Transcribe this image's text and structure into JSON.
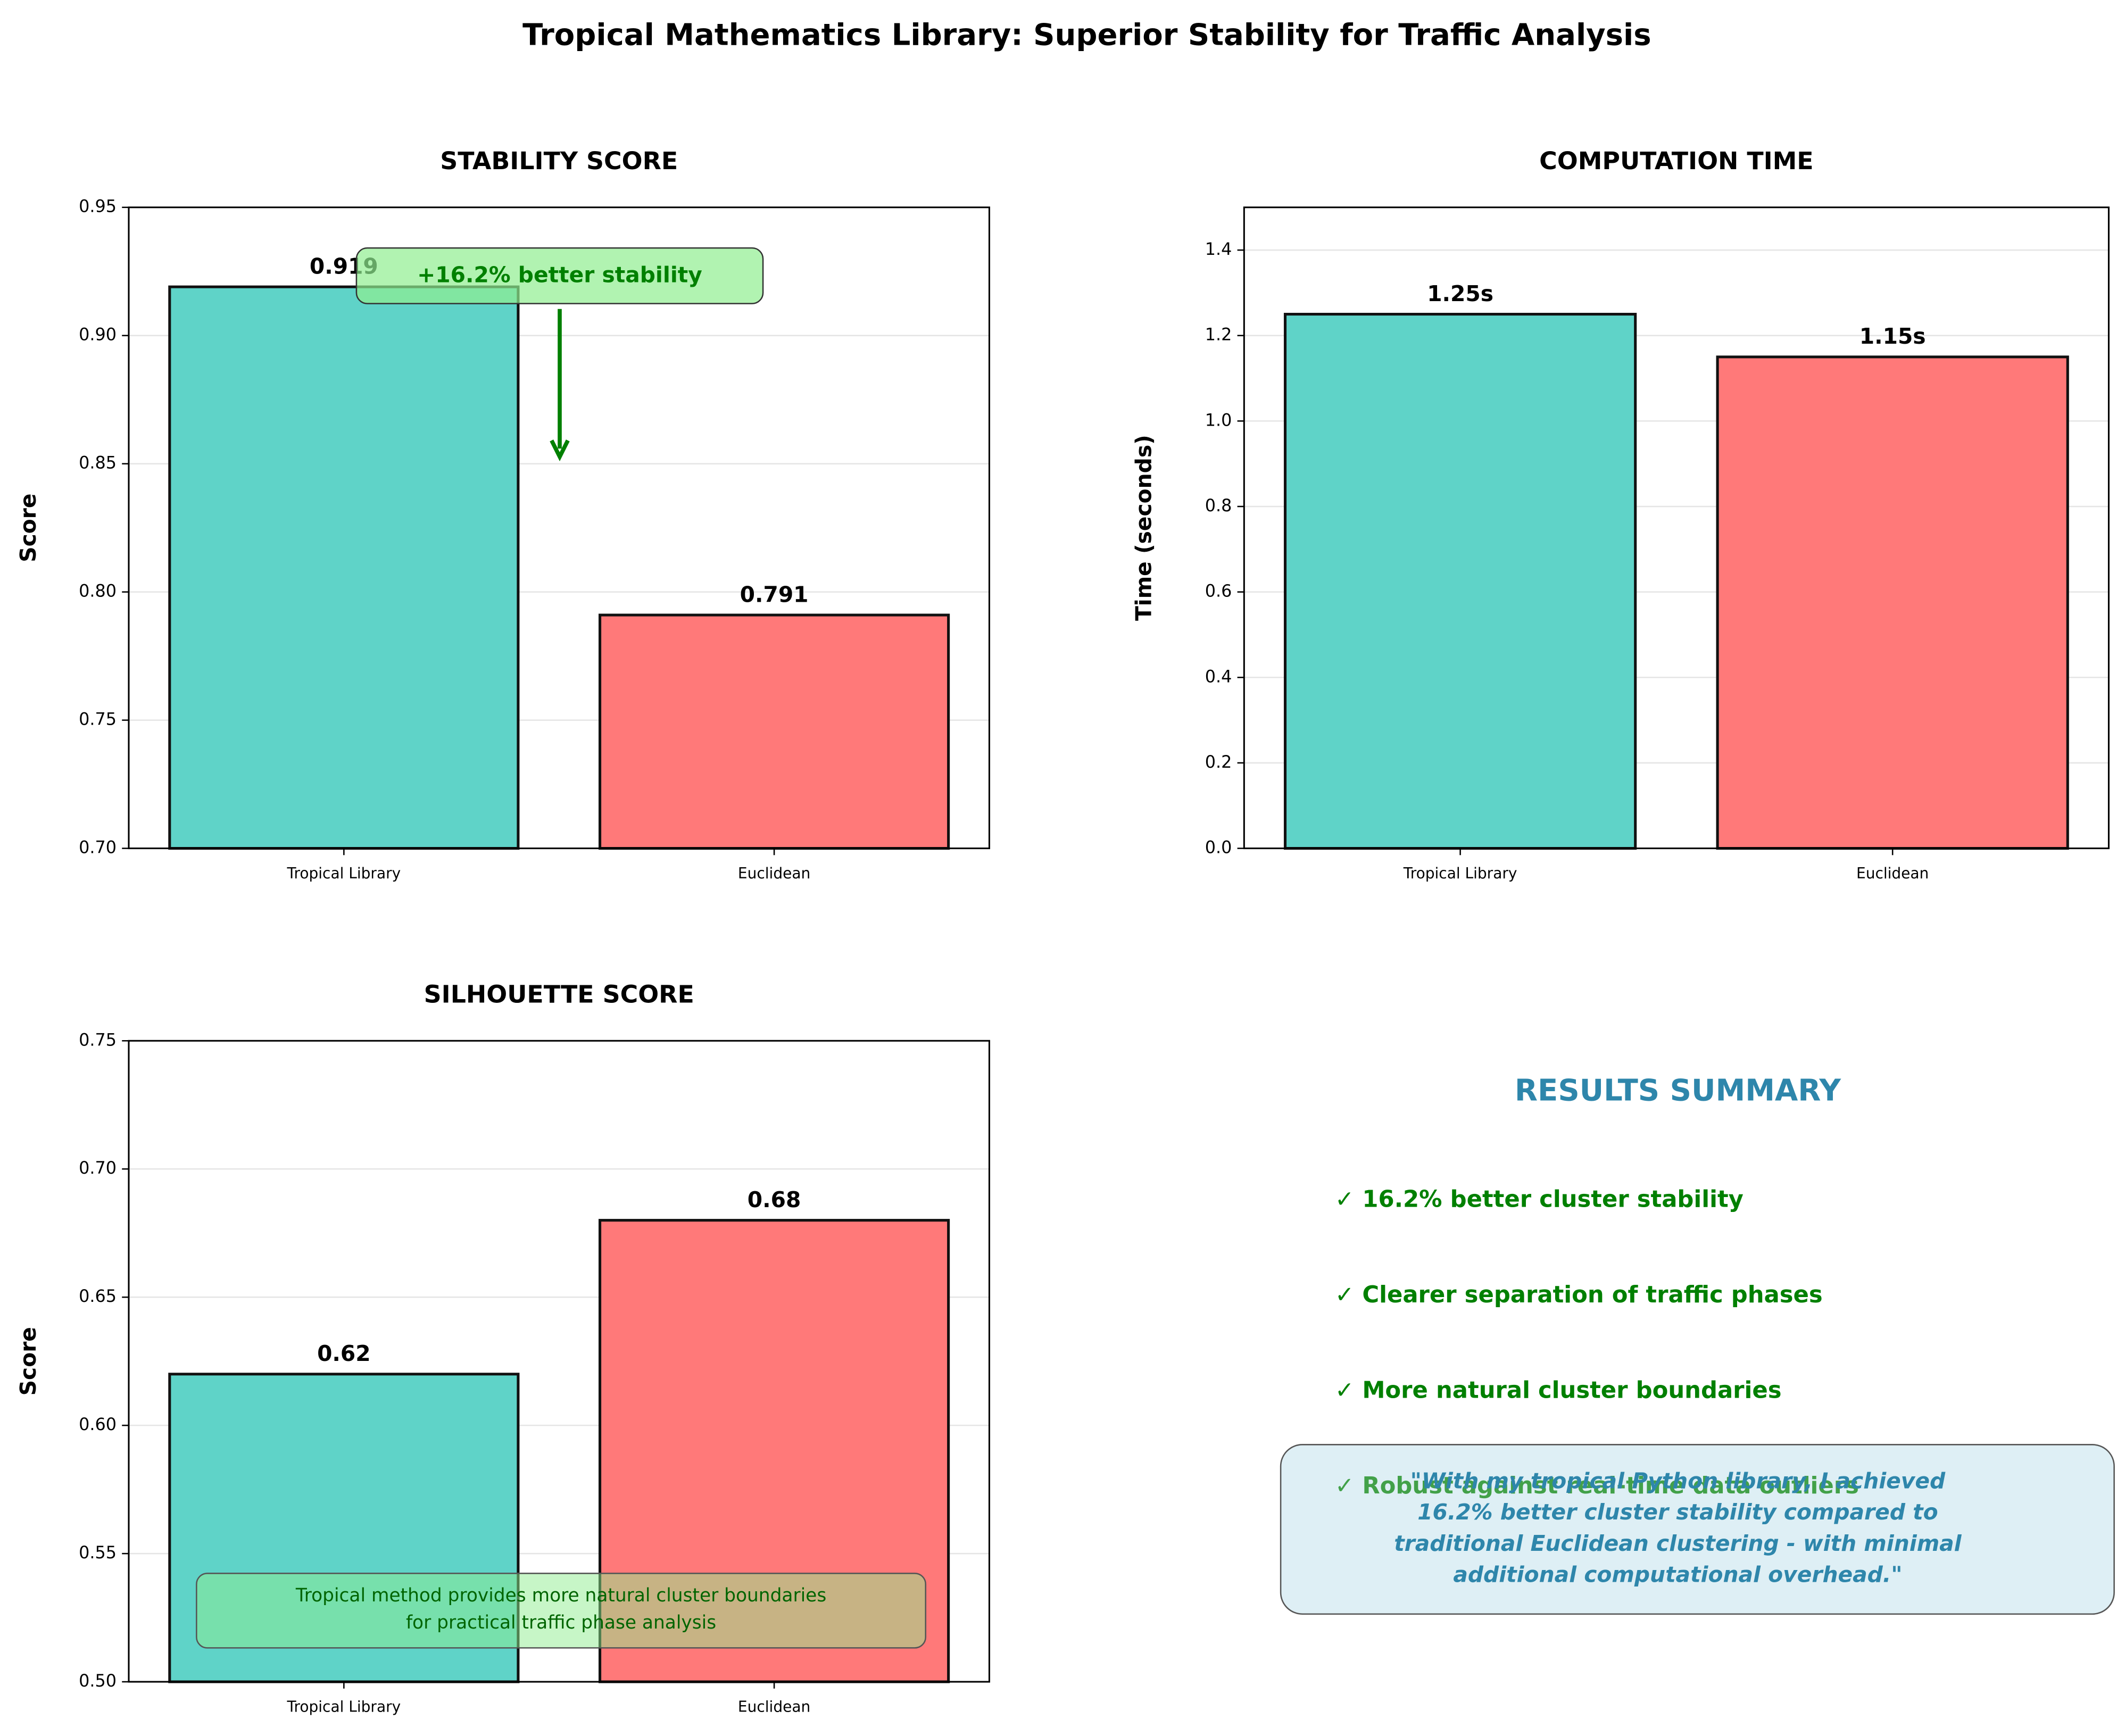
{
  "title": "Tropical Mathematics Library: Superior Stability for Traffic Analysis",
  "chart_data": [
    {
      "type": "bar",
      "title": "STABILITY SCORE",
      "ylabel": "Score",
      "categories": [
        "Tropical Library",
        "Euclidean"
      ],
      "values": [
        0.919,
        0.791
      ],
      "colors": [
        "#5fd3c8",
        "#ff7979"
      ],
      "ylim": [
        0.7,
        0.95
      ],
      "yticks": [
        {
          "value": 0.7,
          "label": "0.70"
        },
        0.75,
        {
          "value": 0.8,
          "label": "0.80"
        },
        0.85,
        {
          "value": 0.9,
          "label": "0.90"
        },
        0.95
      ],
      "grid": true,
      "annotation": "+16.2% better stability"
    },
    {
      "type": "bar",
      "title": "COMPUTATION TIME",
      "ylabel": "Time (seconds)",
      "categories": [
        "Tropical Library",
        "Euclidean"
      ],
      "values": [
        1.25,
        1.15
      ],
      "value_labels": [
        "1.25s",
        "1.15s"
      ],
      "colors": [
        "#5fd3c8",
        "#ff7979"
      ],
      "ylim": [
        0,
        1.5
      ],
      "yticks": [
        {
          "value": 0,
          "label": "0.0"
        },
        0.2,
        0.4,
        0.6,
        0.8,
        {
          "value": 1,
          "label": "1.0"
        },
        1.2,
        1.4
      ],
      "grid": true
    },
    {
      "type": "bar",
      "title": "SILHOUETTE SCORE",
      "ylabel": "Score",
      "categories": [
        "Tropical Library",
        "Euclidean"
      ],
      "values": [
        0.62,
        0.68
      ],
      "colors": [
        "#5fd3c8",
        "#ff7979"
      ],
      "ylim": [
        0.5,
        0.75
      ],
      "yticks": [
        {
          "value": 0.5,
          "label": "0.50"
        },
        0.55,
        {
          "value": 0.6,
          "label": "0.60"
        },
        0.65,
        {
          "value": 0.7,
          "label": "0.70"
        },
        0.75
      ],
      "grid": true,
      "annotation": [
        "Tropical method provides more natural cluster boundaries",
        "for practical traffic phase analysis"
      ]
    }
  ],
  "summary": {
    "title": "RESULTS SUMMARY",
    "items": [
      "✓ 16.2% better cluster stability",
      "✓ Clearer separation of traffic phases",
      "✓ More natural cluster boundaries",
      "✓ Robust against real-time data outliers"
    ],
    "quote": [
      "\"With my tropical Python library, I achieved",
      "16.2% better cluster stability compared to",
      "traditional Euclidean clustering - with minimal",
      "additional computational overhead.\""
    ]
  }
}
